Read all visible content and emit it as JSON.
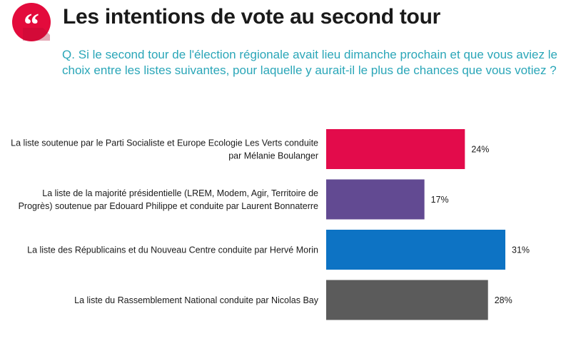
{
  "header": {
    "title": "Les intentions de vote au second tour",
    "question": "Q. Si le second tour de l'élection régionale avait lieu dimanche prochain et que vous aviez le choix entre les listes suivantes, pour laquelle y aurait-il le plus de chances que vous votiez ?"
  },
  "icons": {
    "quote": "quote-mark-icon"
  },
  "colors": {
    "badge": "#e30b3c",
    "question_text": "#2aa6b8"
  },
  "chart_data": {
    "type": "bar",
    "orientation": "horizontal",
    "categories": [
      [
        "La liste soutenue par le Parti Socialiste et Europe Ecologie Les Verts conduite",
        "par Mélanie Boulanger"
      ],
      [
        "La liste de la majorité présidentielle (LREM, Modem, Agir, Territoire de",
        "Progrès) soutenue par Edouard Philippe et conduite par Laurent Bonnaterre"
      ],
      [
        "La liste des Républicains et du Nouveau Centre conduite par Hervé Morin"
      ],
      [
        "La liste du Rassemblement National conduite par Nicolas Bay"
      ]
    ],
    "values": [
      24,
      17,
      31,
      28
    ],
    "value_labels": [
      "24%",
      "17%",
      "31%",
      "28%"
    ],
    "colors": [
      "#e30b4b",
      "#624a92",
      "#0d73c4",
      "#5b5b5b"
    ],
    "xlim": [
      0,
      31
    ],
    "grid": false,
    "legend": "none"
  }
}
